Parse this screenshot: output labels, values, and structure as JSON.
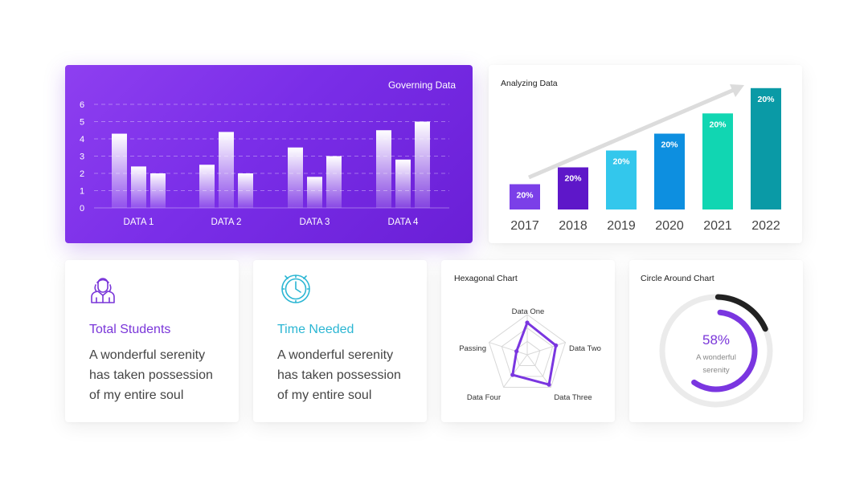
{
  "colors": {
    "purple": "#7b34e8",
    "bar_colors": [
      "#7b3fe8",
      "#5e17c9",
      "#33c7ec",
      "#0d8fe0",
      "#11d6b2",
      "#0a9aa6"
    ],
    "teal_text": "#2bb6d3",
    "purple_text": "#7a36d9",
    "donut_progress": "#7a36e0",
    "donut_dark": "#222222",
    "donut_track": "#ebebeb"
  },
  "chart_data": [
    {
      "type": "bar",
      "title": "Governing Data",
      "categories": [
        "DATA 1",
        "DATA 2",
        "DATA 3",
        "DATA 4"
      ],
      "series": [
        {
          "values": [
            4.3,
            2.5,
            3.5,
            4.5
          ]
        },
        {
          "values": [
            2.4,
            4.4,
            1.8,
            2.8
          ]
        },
        {
          "values": [
            2.0,
            2.0,
            3.0,
            5.0
          ]
        }
      ],
      "ylim": [
        0,
        6
      ],
      "yticks": [
        "0",
        "1",
        "2",
        "3",
        "4",
        "5",
        "6"
      ],
      "grid": true
    },
    {
      "type": "bar",
      "title": "Analyzing Data",
      "categories": [
        "2017",
        "2018",
        "2019",
        "2020",
        "2021",
        "2022"
      ],
      "values": [
        1.5,
        2.5,
        3.5,
        4.5,
        5.7,
        7.2
      ],
      "data_labels": [
        "20%",
        "20%",
        "20%",
        "20%",
        "20%",
        "20%"
      ],
      "ylim": [
        0,
        8
      ],
      "annotation": "trend-arrow"
    },
    {
      "type": "radar",
      "title": "Hexagonal Chart",
      "axes": [
        "Data One",
        "Data Two",
        "Data Three",
        "Data Four",
        "Passing"
      ],
      "values": [
        0.8,
        0.75,
        0.92,
        0.62,
        0.28
      ],
      "levels": 3
    },
    {
      "type": "donut",
      "title": "Circle Around Chart",
      "value": 58,
      "label": "58%",
      "caption_lines": [
        "A wonderful",
        "serenity"
      ]
    }
  ],
  "cards": {
    "students": {
      "icon": "student-icon",
      "heading": "Total Students",
      "lines": [
        "A wonderful serenity",
        "has taken possession",
        "of my entire soul"
      ]
    },
    "time": {
      "icon": "clock-icon",
      "heading": "Time Needed",
      "lines": [
        "A wonderful serenity",
        "has taken possession",
        "of my entire soul"
      ]
    }
  }
}
